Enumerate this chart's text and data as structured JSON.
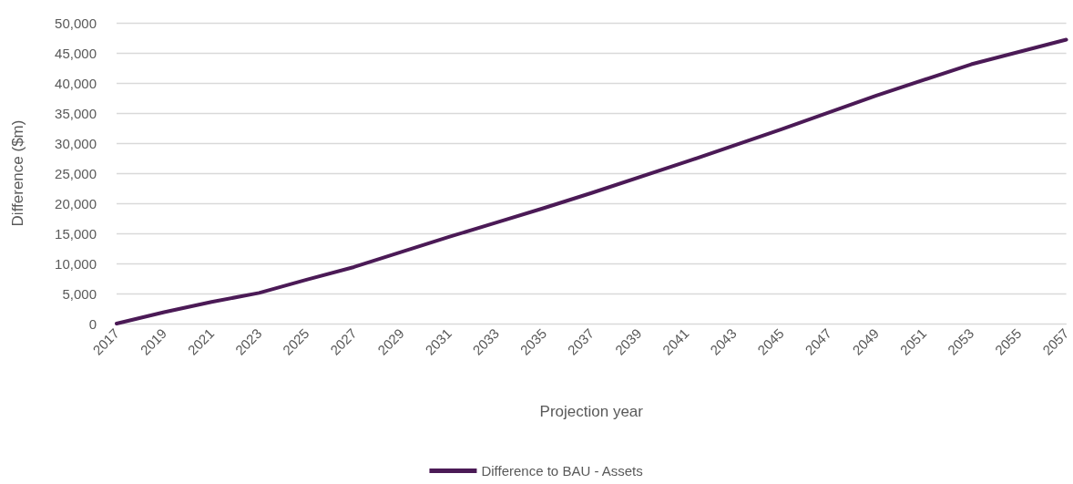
{
  "chart_data": {
    "type": "line",
    "xlabel": "Projection year",
    "ylabel": "Difference ($m)",
    "x": [
      2017,
      2019,
      2021,
      2023,
      2025,
      2027,
      2029,
      2031,
      2033,
      2035,
      2037,
      2041,
      2045,
      2049,
      2053,
      2057
    ],
    "series": [
      {
        "name": "Difference to BAU - Assets",
        "color": "#4b1a56",
        "values": [
          0,
          1900,
          3600,
          5100,
          7300,
          9400,
          11900,
          14400,
          16800,
          19200,
          21700,
          26900,
          32300,
          37900,
          43100,
          47200
        ]
      }
    ],
    "xlim": [
      2017,
      2057
    ],
    "xticks": [
      2017,
      2019,
      2021,
      2023,
      2025,
      2027,
      2029,
      2031,
      2033,
      2035,
      2037,
      2039,
      2041,
      2043,
      2045,
      2047,
      2049,
      2051,
      2053,
      2055,
      2057
    ],
    "ylim": [
      0,
      50000
    ],
    "yticks": [
      {
        "value": 0,
        "label": "0"
      },
      {
        "value": 5000,
        "label": "5,000"
      },
      {
        "value": 10000,
        "label": "10,000"
      },
      {
        "value": 15000,
        "label": "15,000"
      },
      {
        "value": 20000,
        "label": "20,000"
      },
      {
        "value": 25000,
        "label": "25,000"
      },
      {
        "value": 30000,
        "label": "30,000"
      },
      {
        "value": 35000,
        "label": "35,000"
      },
      {
        "value": 40000,
        "label": "40,000"
      },
      {
        "value": 45000,
        "label": "45,000"
      },
      {
        "value": 50000,
        "label": "50,000"
      }
    ],
    "grid": "y",
    "legend": "bottom",
    "marker": "none",
    "line_style": "solid"
  }
}
